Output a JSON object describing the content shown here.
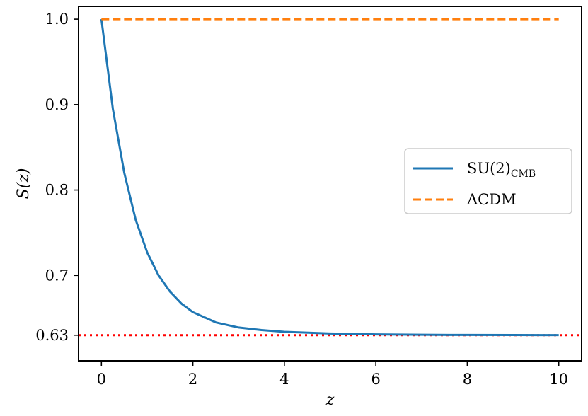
{
  "chart_data": {
    "type": "line",
    "xlabel": "z",
    "ylabel": "S(z)",
    "xlim": [
      -0.5,
      10.5
    ],
    "ylim": [
      0.6,
      1.015
    ],
    "xticks": [
      0,
      2,
      4,
      6,
      8,
      10
    ],
    "xtick_labels": [
      "0",
      "2",
      "4",
      "6",
      "8",
      "10"
    ],
    "yticks": [
      0.63,
      0.7,
      0.8,
      0.9,
      1.0
    ],
    "ytick_labels": [
      "0.63",
      "0.7",
      "0.8",
      "0.9",
      "1.0"
    ],
    "grid": false,
    "legend_position": "center-right",
    "series": [
      {
        "name": "SU(2)",
        "name_subscript": "CMB",
        "color": "#1f77b4",
        "style": "solid",
        "x": [
          0,
          0.25,
          0.5,
          0.75,
          1,
          1.25,
          1.5,
          1.75,
          2,
          2.5,
          3,
          3.5,
          4,
          5,
          6,
          7,
          8,
          9,
          10
        ],
        "y": [
          1.0,
          0.895,
          0.82,
          0.765,
          0.727,
          0.7,
          0.681,
          0.667,
          0.657,
          0.645,
          0.639,
          0.636,
          0.634,
          0.632,
          0.631,
          0.6305,
          0.6303,
          0.6302,
          0.6301
        ]
      },
      {
        "name": "ΛCDM",
        "color": "#ff7f0e",
        "style": "dashed",
        "x": [
          0,
          10
        ],
        "y": [
          1.0,
          1.0
        ]
      }
    ],
    "hlines": [
      {
        "y": 0.63,
        "color": "#ff0000",
        "style": "dotted"
      }
    ]
  }
}
